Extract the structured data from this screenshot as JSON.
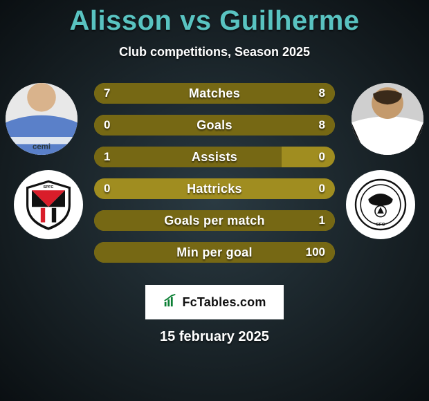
{
  "title_color": "#59c3c1",
  "title": "Alisson vs Guilherme",
  "subtitle": "Club competitions, Season 2025",
  "bars": {
    "track_color": "#a08d20",
    "fill_color": "#766814",
    "rows": [
      {
        "label": "Matches",
        "left_val": "7",
        "right_val": "8",
        "left_w": 47,
        "right_w": 53
      },
      {
        "label": "Goals",
        "left_val": "0",
        "right_val": "8",
        "left_w": 0,
        "right_w": 100
      },
      {
        "label": "Assists",
        "left_val": "1",
        "right_val": "0",
        "left_w": 78,
        "right_w": 0
      },
      {
        "label": "Hattricks",
        "left_val": "0",
        "right_val": "0",
        "left_w": 0,
        "right_w": 0
      },
      {
        "label": "Goals per match",
        "left_val": "",
        "right_val": "1",
        "left_w": 0,
        "right_w": 100
      },
      {
        "label": "Min per goal",
        "left_val": "",
        "right_val": "100",
        "left_w": 0,
        "right_w": 100
      }
    ]
  },
  "branding": "FcTables.com",
  "date": "15 february 2025",
  "players": {
    "left": {
      "name": "Alisson",
      "club": "São Paulo FC"
    },
    "right": {
      "name": "Guilherme",
      "club": "Santos FC"
    }
  }
}
